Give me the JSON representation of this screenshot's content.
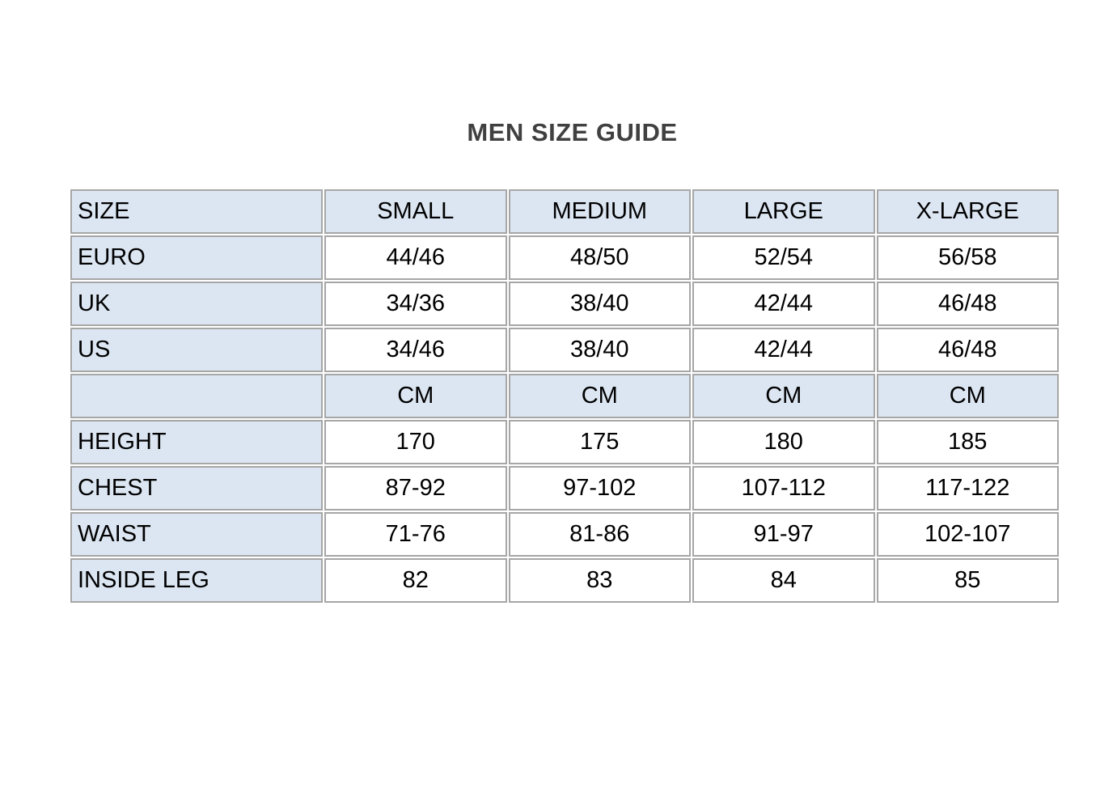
{
  "title": "MEN SIZE GUIDE",
  "colors": {
    "page_bg": "#ffffff",
    "title_color": "#404040",
    "text_color": "#000000",
    "border_color": "#a6a6a6",
    "header_bg": "#dce6f2",
    "label_bg": "#dce6f2",
    "value_bg": "#ffffff"
  },
  "table": {
    "header": [
      "SIZE",
      "SMALL",
      "MEDIUM",
      "LARGE",
      "X-LARGE"
    ],
    "rows": [
      {
        "label": "EURO",
        "values": [
          "44/46",
          "48/50",
          "52/54",
          "56/58"
        ]
      },
      {
        "label": "UK",
        "values": [
          "34/36",
          "38/40",
          "42/44",
          "46/48"
        ]
      },
      {
        "label": "US",
        "values": [
          "34/46",
          "38/40",
          "42/44",
          "46/48"
        ]
      },
      {
        "label": "",
        "values": [
          "CM",
          "CM",
          "CM",
          "CM"
        ]
      },
      {
        "label": "HEIGHT",
        "values": [
          "170",
          "175",
          "180",
          "185"
        ]
      },
      {
        "label": "CHEST",
        "values": [
          "87-92",
          "97-102",
          "107-112",
          "117-122"
        ]
      },
      {
        "label": "WAIST",
        "values": [
          "71-76",
          "81-86",
          "91-97",
          "102-107"
        ]
      },
      {
        "label": "INSIDE LEG",
        "values": [
          "82",
          "83",
          "84",
          "85"
        ]
      }
    ]
  }
}
